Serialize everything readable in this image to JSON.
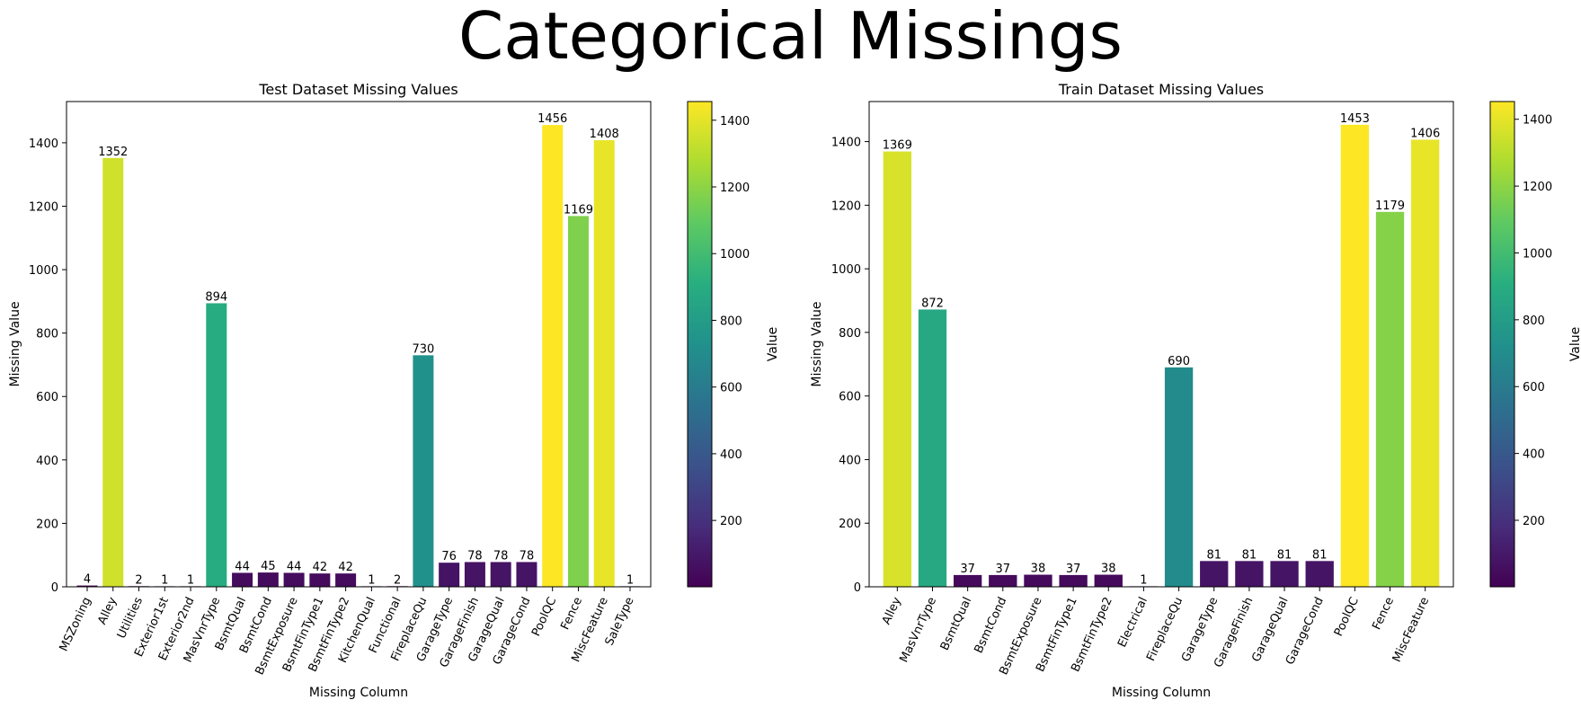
{
  "suptitle": "Categorical Missings",
  "chart_data": [
    {
      "type": "bar",
      "title": "Test Dataset Missing Values",
      "xlabel": "Missing Column",
      "ylabel": "Missing Value",
      "ylim": [
        0,
        1530
      ],
      "yticks": [
        0,
        200,
        400,
        600,
        800,
        1000,
        1200,
        1400
      ],
      "grid": false,
      "colorbar": {
        "label": "Value",
        "colormap": "viridis",
        "range": [
          1,
          1456
        ],
        "ticks": [
          200,
          400,
          600,
          800,
          1000,
          1200,
          1400
        ]
      },
      "categories": [
        "MSZoning",
        "Alley",
        "Utilities",
        "Exterior1st",
        "Exterior2nd",
        "MasVnrType",
        "BsmtQual",
        "BsmtCond",
        "BsmtExposure",
        "BsmtFinType1",
        "BsmtFinType2",
        "KitchenQual",
        "Functional",
        "FireplaceQu",
        "GarageType",
        "GarageFinish",
        "GarageQual",
        "GarageCond",
        "PoolQC",
        "Fence",
        "MiscFeature",
        "SaleType"
      ],
      "values": [
        4,
        1352,
        2,
        1,
        1,
        894,
        44,
        45,
        44,
        42,
        42,
        1,
        2,
        730,
        76,
        78,
        78,
        78,
        1456,
        1169,
        1408,
        1
      ]
    },
    {
      "type": "bar",
      "title": "Train Dataset Missing Values",
      "xlabel": "Missing Column",
      "ylabel": "Missing Value",
      "ylim": [
        0,
        1526
      ],
      "yticks": [
        0,
        200,
        400,
        600,
        800,
        1000,
        1200,
        1400
      ],
      "grid": false,
      "colorbar": {
        "label": "Value",
        "colormap": "viridis",
        "range": [
          1,
          1453
        ],
        "ticks": [
          200,
          400,
          600,
          800,
          1000,
          1200,
          1400
        ]
      },
      "categories": [
        "Alley",
        "MasVnrType",
        "BsmtQual",
        "BsmtCond",
        "BsmtExposure",
        "BsmtFinType1",
        "BsmtFinType2",
        "Electrical",
        "FireplaceQu",
        "GarageType",
        "GarageFinish",
        "GarageQual",
        "GarageCond",
        "PoolQC",
        "Fence",
        "MiscFeature"
      ],
      "values": [
        1369,
        872,
        37,
        37,
        38,
        37,
        38,
        1,
        690,
        81,
        81,
        81,
        81,
        1453,
        1179,
        1406
      ]
    }
  ]
}
